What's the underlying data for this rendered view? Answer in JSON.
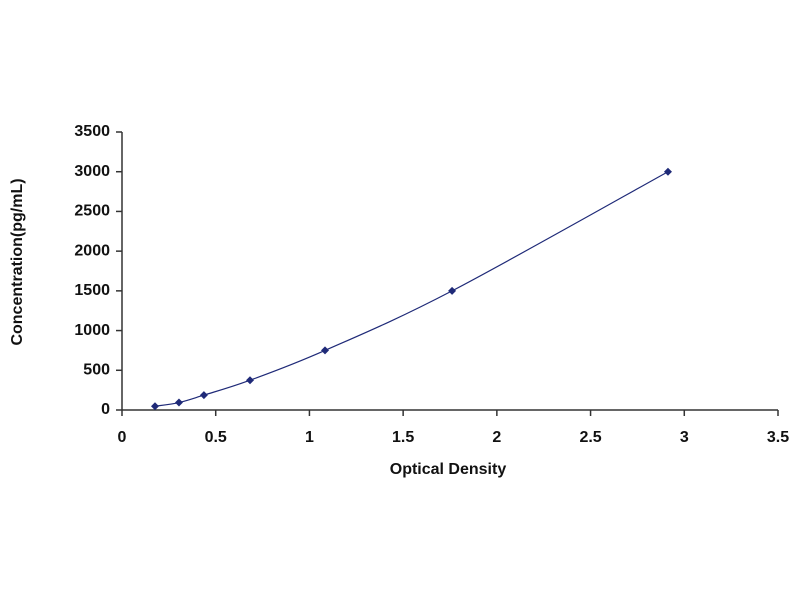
{
  "chart_data": {
    "type": "scatter",
    "x_label": "Optical Density",
    "y_label": "Concentration(pg/mL)",
    "x": [
      0.176,
      0.304,
      0.437,
      0.683,
      1.083,
      1.761,
      2.913
    ],
    "series": [
      {
        "color": "#1f2a78",
        "values": [
          46.88,
          93.75,
          187.5,
          375,
          750,
          1500,
          3000
        ]
      }
    ],
    "xlim": [
      0,
      3.5
    ],
    "xticks": [
      0,
      0.5,
      1,
      1.5,
      2,
      2.5,
      3,
      3.5
    ],
    "ylim": [
      0,
      3500
    ],
    "yticks": [
      0,
      500,
      1000,
      1500,
      2000,
      2500,
      3000,
      3500
    ],
    "grid": false
  }
}
